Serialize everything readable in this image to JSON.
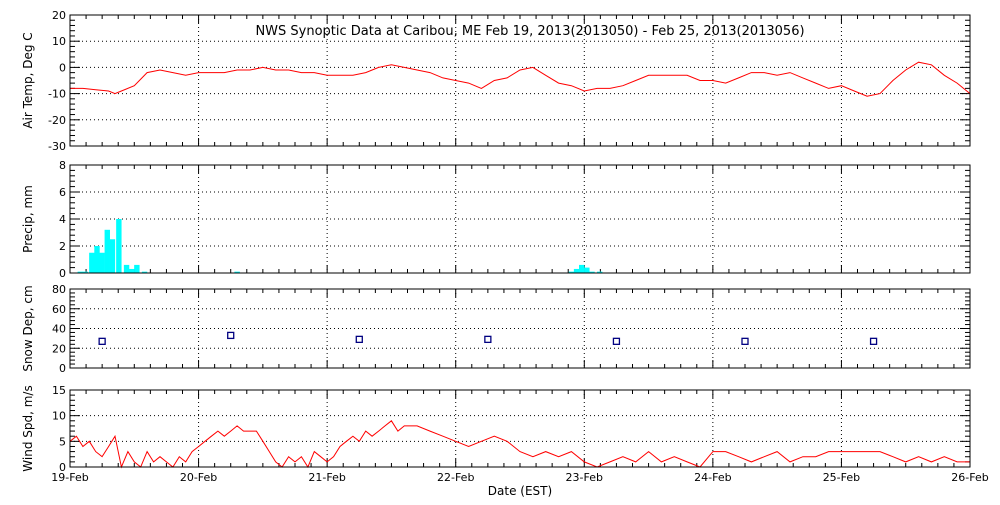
{
  "chart_data": {
    "title": "NWS Synoptic Data at Caribou, ME    Feb 19, 2013(2013050) - Feb 25, 2013(2013056)",
    "xlabel": "Date (EST)",
    "x_ticks": [
      "19-Feb",
      "20-Feb",
      "21-Feb",
      "22-Feb",
      "23-Feb",
      "24-Feb",
      "25-Feb",
      "26-Feb"
    ],
    "xlim": [
      0,
      7
    ],
    "colors": {
      "line": "#ff0000",
      "precip": "#00ffff",
      "snow": "#000080",
      "axes": "#000000"
    },
    "panels": [
      {
        "id": "air-temp",
        "type": "line",
        "ylabel": "Air Temp, Deg C",
        "ylim": [
          -30,
          20
        ],
        "yticks": [
          20,
          10,
          0,
          -10,
          -20,
          -30
        ],
        "grid": true,
        "x": [
          0,
          0.1,
          0.2,
          0.3,
          0.35,
          0.4,
          0.5,
          0.6,
          0.7,
          0.8,
          0.9,
          1.0,
          1.1,
          1.2,
          1.3,
          1.4,
          1.5,
          1.6,
          1.7,
          1.8,
          1.9,
          2.0,
          2.1,
          2.2,
          2.3,
          2.4,
          2.5,
          2.6,
          2.7,
          2.8,
          2.9,
          3.0,
          3.1,
          3.2,
          3.3,
          3.4,
          3.5,
          3.6,
          3.7,
          3.8,
          3.9,
          4.0,
          4.1,
          4.2,
          4.3,
          4.4,
          4.5,
          4.6,
          4.7,
          4.8,
          4.9,
          5.0,
          5.1,
          5.2,
          5.3,
          5.4,
          5.5,
          5.6,
          5.7,
          5.8,
          5.9,
          6.0,
          6.1,
          6.2,
          6.3,
          6.4,
          6.5,
          6.6,
          6.7,
          6.8,
          6.9,
          7.0
        ],
        "y": [
          -8,
          -8,
          -8.5,
          -9,
          -10,
          -9,
          -7,
          -2,
          -1,
          -2,
          -3,
          -2,
          -2,
          -2,
          -1,
          -1,
          0,
          -1,
          -1,
          -2,
          -2,
          -3,
          -3,
          -3,
          -2,
          0,
          1,
          0,
          -1,
          -2,
          -4,
          -5,
          -6,
          -8,
          -5,
          -4,
          -1,
          0,
          -3,
          -6,
          -7,
          -9,
          -8,
          -8,
          -7,
          -5,
          -3,
          -3,
          -3,
          -3,
          -5,
          -5,
          -6,
          -4,
          -2,
          -2,
          -3,
          -2,
          -4,
          -6,
          -8,
          -7,
          -9,
          -11,
          -10,
          -5,
          -1,
          2,
          1,
          -3,
          -6,
          -10
        ]
      },
      {
        "id": "precip",
        "type": "bar",
        "ylabel": "Precip, mm",
        "ylim": [
          0,
          8
        ],
        "yticks": [
          8,
          6,
          4,
          2,
          0
        ],
        "grid": true,
        "bar_width": 0.042,
        "x": [
          0.08,
          0.12,
          0.17,
          0.21,
          0.25,
          0.29,
          0.33,
          0.38,
          0.44,
          0.48,
          0.52,
          0.58,
          1.3,
          3.9,
          3.94,
          3.98,
          4.02,
          4.06,
          4.12
        ],
        "y": [
          0.1,
          0.1,
          1.5,
          2.0,
          1.5,
          3.2,
          2.5,
          4.0,
          0.6,
          0.3,
          0.6,
          0.1,
          0.1,
          0.1,
          0.3,
          0.6,
          0.4,
          0.1,
          0.1
        ]
      },
      {
        "id": "snow-depth",
        "type": "scatter",
        "ylabel": "Snow Dep, cm",
        "ylim": [
          0,
          80
        ],
        "yticks": [
          80,
          60,
          40,
          20,
          0
        ],
        "grid": true,
        "x": [
          0.25,
          1.25,
          2.25,
          3.25,
          4.25,
          5.25,
          6.25
        ],
        "y": [
          27,
          33,
          29,
          29,
          27,
          27,
          27
        ]
      },
      {
        "id": "wind-speed",
        "type": "line",
        "ylabel": "Wind Spd, m/s",
        "ylim": [
          0,
          15
        ],
        "yticks": [
          15,
          10,
          5,
          0
        ],
        "grid": true,
        "x": [
          0,
          0.05,
          0.1,
          0.15,
          0.2,
          0.25,
          0.3,
          0.35,
          0.4,
          0.45,
          0.5,
          0.55,
          0.6,
          0.65,
          0.7,
          0.75,
          0.8,
          0.85,
          0.9,
          0.95,
          1.0,
          1.05,
          1.1,
          1.15,
          1.2,
          1.25,
          1.3,
          1.35,
          1.4,
          1.45,
          1.5,
          1.55,
          1.6,
          1.65,
          1.7,
          1.75,
          1.8,
          1.85,
          1.9,
          1.95,
          2.0,
          2.05,
          2.1,
          2.15,
          2.2,
          2.25,
          2.3,
          2.35,
          2.4,
          2.45,
          2.5,
          2.55,
          2.6,
          2.7,
          2.8,
          2.9,
          3.0,
          3.1,
          3.2,
          3.3,
          3.4,
          3.5,
          3.6,
          3.7,
          3.8,
          3.9,
          4.0,
          4.1,
          4.2,
          4.3,
          4.4,
          4.5,
          4.6,
          4.7,
          4.8,
          4.9,
          5.0,
          5.1,
          5.2,
          5.3,
          5.4,
          5.5,
          5.6,
          5.7,
          5.8,
          5.9,
          6.0,
          6.1,
          6.2,
          6.3,
          6.4,
          6.5,
          6.6,
          6.7,
          6.8,
          6.9,
          7.0
        ],
        "y": [
          5,
          6,
          4,
          5,
          3,
          2,
          4,
          6,
          0,
          3,
          1,
          0,
          3,
          1,
          2,
          1,
          0,
          2,
          1,
          3,
          4,
          5,
          6,
          7,
          6,
          7,
          8,
          7,
          7,
          7,
          5,
          3,
          1,
          0,
          2,
          1,
          2,
          0,
          3,
          2,
          1,
          2,
          4,
          5,
          6,
          5,
          7,
          6,
          7,
          8,
          9,
          7,
          8,
          8,
          7,
          6,
          5,
          4,
          5,
          6,
          5,
          3,
          2,
          3,
          2,
          3,
          1,
          0,
          1,
          2,
          1,
          3,
          1,
          2,
          1,
          0,
          3,
          3,
          2,
          1,
          2,
          3,
          1,
          2,
          2,
          3,
          3,
          3,
          3,
          3,
          2,
          1,
          2,
          1,
          2,
          1,
          1
        ]
      }
    ]
  }
}
